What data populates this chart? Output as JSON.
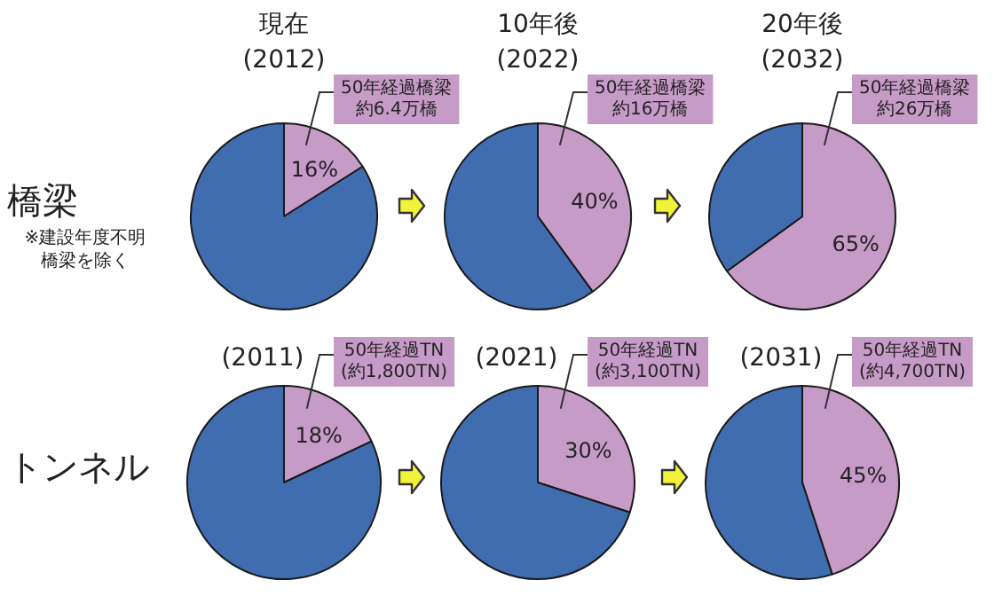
{
  "chart_data": [
    {
      "type": "pie",
      "title": "現在\n(2012)",
      "categories": [
        "50年経過橋梁約6.4万橋",
        null
      ],
      "values": [
        16,
        84
      ],
      "colors": [
        "#c79bc8",
        "#3f6db0"
      ],
      "value_labels": [
        "16%",
        null
      ],
      "annotations": [
        "橋梁",
        "※建設年度不明橋梁を除く"
      ]
    },
    {
      "type": "pie",
      "title": "10年後\n(2022)",
      "categories": [
        "50年経過橋梁約16万橋",
        null
      ],
      "values": [
        40,
        60
      ],
      "colors": [
        "#c79bc8",
        "#3f6db0"
      ],
      "value_labels": [
        "40%",
        null
      ]
    },
    {
      "type": "pie",
      "title": "20年後\n(2032)",
      "categories": [
        "50年経過橋梁約26万橋",
        null
      ],
      "values": [
        65,
        35
      ],
      "colors": [
        "#c79bc8",
        "#3f6db0"
      ],
      "value_labels": [
        "65%",
        null
      ]
    },
    {
      "type": "pie",
      "title": "(2011)",
      "categories": [
        "50年経過TN\n(約1,800TN)",
        null
      ],
      "values": [
        18,
        82
      ],
      "colors": [
        "#c79bc8",
        "#3f6db0"
      ],
      "value_labels": [
        "18%",
        null
      ],
      "annotations": [
        "トンネル"
      ]
    },
    {
      "type": "pie",
      "title": "(2021)",
      "categories": [
        "50年経過TN\n(約3,100TN)",
        null
      ],
      "values": [
        30,
        70
      ],
      "colors": [
        "#c79bc8",
        "#3f6db0"
      ],
      "value_labels": [
        "30%",
        null
      ]
    },
    {
      "type": "pie",
      "title": "(2031)",
      "categories": [
        "50年経過TN\n(約4,700TN)",
        null
      ],
      "values": [
        45,
        55
      ],
      "colors": [
        "#c79bc8",
        "#3f6db0"
      ],
      "value_labels": [
        "45%",
        null
      ]
    }
  ]
}
